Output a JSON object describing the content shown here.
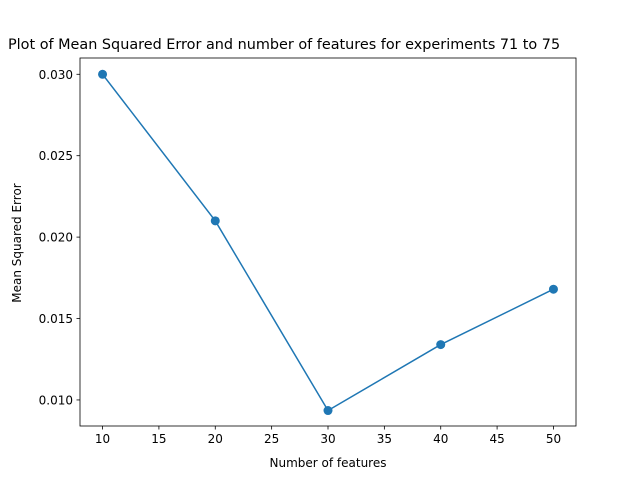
{
  "chart_data": {
    "type": "line",
    "title": "Plot of Mean Squared Error and number of features for experiments 71 to 75",
    "xlabel": "Number of features",
    "ylabel": "Mean Squared Error",
    "x": [
      10,
      20,
      30,
      40,
      50
    ],
    "series": [
      {
        "values": [
          0.03,
          0.021,
          0.00935,
          0.0134,
          0.0168
        ],
        "color": "#1f77b4",
        "marker": "circle"
      }
    ],
    "xlim": [
      8,
      52
    ],
    "ylim": [
      0.0084,
      0.031
    ],
    "xticks": [
      "10",
      "15",
      "20",
      "25",
      "30",
      "35",
      "40",
      "45",
      "50"
    ],
    "yticks": [
      "0.010",
      "0.015",
      "0.020",
      "0.025",
      "0.030"
    ],
    "grid": false,
    "legend": "none"
  }
}
